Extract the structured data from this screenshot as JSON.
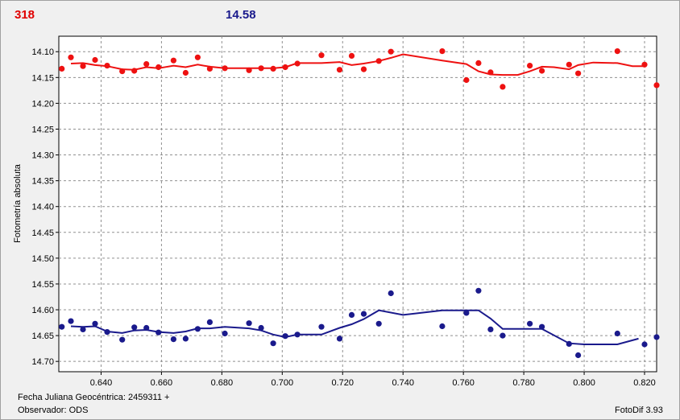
{
  "header": {
    "left": "318",
    "right": "14.58"
  },
  "footer": {
    "date_label": "Fecha Juliana Geocéntrica: 2459311 +",
    "observer": "Observador: ODS",
    "software": "FotoDif 3.93"
  },
  "colors": {
    "red": "#ee1111",
    "blue": "#1a1a8c"
  },
  "chart_data": {
    "type": "scatter",
    "ylabel": "Fotometría absoluta",
    "xlim": [
      0.626,
      0.824
    ],
    "ylim": [
      14.72,
      14.07
    ],
    "y_inverted": true,
    "grid": true,
    "x_ticks": [
      "0.640",
      "0.660",
      "0.680",
      "0.700",
      "0.720",
      "0.740",
      "0.760",
      "0.780",
      "0.800",
      "0.820"
    ],
    "x_tick_values": [
      0.64,
      0.66,
      0.68,
      0.7,
      0.72,
      0.74,
      0.76,
      0.78,
      0.8,
      0.82
    ],
    "y_ticks": [
      "14.10",
      "14.15",
      "14.20",
      "14.25",
      "14.30",
      "14.35",
      "14.40",
      "14.45",
      "14.50",
      "14.55",
      "14.60",
      "14.65",
      "14.70"
    ],
    "y_tick_values": [
      14.1,
      14.15,
      14.2,
      14.25,
      14.3,
      14.35,
      14.4,
      14.45,
      14.5,
      14.55,
      14.6,
      14.65,
      14.7
    ],
    "series": [
      {
        "name": "318",
        "points": [
          [
            0.627,
            14.133
          ],
          [
            0.63,
            14.111
          ],
          [
            0.634,
            14.128
          ],
          [
            0.638,
            14.116
          ],
          [
            0.642,
            14.127
          ],
          [
            0.647,
            14.138
          ],
          [
            0.651,
            14.137
          ],
          [
            0.655,
            14.124
          ],
          [
            0.659,
            14.13
          ],
          [
            0.664,
            14.117
          ],
          [
            0.668,
            14.141
          ],
          [
            0.672,
            14.111
          ],
          [
            0.676,
            14.133
          ],
          [
            0.681,
            14.132
          ],
          [
            0.689,
            14.136
          ],
          [
            0.693,
            14.132
          ],
          [
            0.697,
            14.133
          ],
          [
            0.701,
            14.13
          ],
          [
            0.705,
            14.123
          ],
          [
            0.713,
            14.107
          ],
          [
            0.719,
            14.135
          ],
          [
            0.723,
            14.108
          ],
          [
            0.727,
            14.134
          ],
          [
            0.732,
            14.118
          ],
          [
            0.736,
            14.1
          ],
          [
            0.753,
            14.099
          ],
          [
            0.761,
            14.155
          ],
          [
            0.765,
            14.122
          ],
          [
            0.769,
            14.14
          ],
          [
            0.773,
            14.168
          ],
          [
            0.782,
            14.127
          ],
          [
            0.786,
            14.137
          ],
          [
            0.795,
            14.125
          ],
          [
            0.798,
            14.142
          ],
          [
            0.811,
            14.099
          ],
          [
            0.82,
            14.125
          ],
          [
            0.824,
            14.165
          ]
        ],
        "trend": [
          [
            0.63,
            14.123
          ],
          [
            0.634,
            14.122
          ],
          [
            0.638,
            14.126
          ],
          [
            0.642,
            14.128
          ],
          [
            0.647,
            14.134
          ],
          [
            0.651,
            14.135
          ],
          [
            0.655,
            14.13
          ],
          [
            0.659,
            14.132
          ],
          [
            0.664,
            14.127
          ],
          [
            0.668,
            14.13
          ],
          [
            0.672,
            14.125
          ],
          [
            0.676,
            14.129
          ],
          [
            0.681,
            14.132
          ],
          [
            0.689,
            14.132
          ],
          [
            0.693,
            14.132
          ],
          [
            0.697,
            14.132
          ],
          [
            0.701,
            14.13
          ],
          [
            0.705,
            14.122
          ],
          [
            0.713,
            14.122
          ],
          [
            0.719,
            14.12
          ],
          [
            0.723,
            14.126
          ],
          [
            0.727,
            14.123
          ],
          [
            0.732,
            14.118
          ],
          [
            0.736,
            14.112
          ],
          [
            0.74,
            14.105
          ],
          [
            0.753,
            14.117
          ],
          [
            0.761,
            14.124
          ],
          [
            0.765,
            14.138
          ],
          [
            0.769,
            14.144
          ],
          [
            0.773,
            14.145
          ],
          [
            0.778,
            14.145
          ],
          [
            0.782,
            14.138
          ],
          [
            0.786,
            14.129
          ],
          [
            0.79,
            14.13
          ],
          [
            0.795,
            14.134
          ],
          [
            0.798,
            14.126
          ],
          [
            0.803,
            14.121
          ],
          [
            0.811,
            14.122
          ],
          [
            0.816,
            14.128
          ],
          [
            0.82,
            14.128
          ]
        ]
      },
      {
        "name": "14.58",
        "points": [
          [
            0.627,
            14.633
          ],
          [
            0.63,
            14.622
          ],
          [
            0.634,
            14.638
          ],
          [
            0.638,
            14.627
          ],
          [
            0.642,
            14.643
          ],
          [
            0.647,
            14.658
          ],
          [
            0.651,
            14.634
          ],
          [
            0.655,
            14.635
          ],
          [
            0.659,
            14.644
          ],
          [
            0.664,
            14.657
          ],
          [
            0.668,
            14.656
          ],
          [
            0.672,
            14.637
          ],
          [
            0.676,
            14.624
          ],
          [
            0.681,
            14.646
          ],
          [
            0.689,
            14.626
          ],
          [
            0.693,
            14.635
          ],
          [
            0.697,
            14.665
          ],
          [
            0.701,
            14.651
          ],
          [
            0.705,
            14.648
          ],
          [
            0.713,
            14.633
          ],
          [
            0.719,
            14.656
          ],
          [
            0.723,
            14.61
          ],
          [
            0.727,
            14.608
          ],
          [
            0.732,
            14.627
          ],
          [
            0.736,
            14.568
          ],
          [
            0.753,
            14.632
          ],
          [
            0.761,
            14.606
          ],
          [
            0.765,
            14.563
          ],
          [
            0.769,
            14.638
          ],
          [
            0.773,
            14.65
          ],
          [
            0.782,
            14.627
          ],
          [
            0.786,
            14.633
          ],
          [
            0.795,
            14.666
          ],
          [
            0.798,
            14.688
          ],
          [
            0.811,
            14.646
          ],
          [
            0.82,
            14.667
          ],
          [
            0.824,
            14.653
          ]
        ],
        "trend": [
          [
            0.63,
            14.632
          ],
          [
            0.634,
            14.633
          ],
          [
            0.638,
            14.632
          ],
          [
            0.642,
            14.642
          ],
          [
            0.647,
            14.645
          ],
          [
            0.651,
            14.64
          ],
          [
            0.655,
            14.639
          ],
          [
            0.659,
            14.643
          ],
          [
            0.664,
            14.645
          ],
          [
            0.668,
            14.642
          ],
          [
            0.672,
            14.636
          ],
          [
            0.676,
            14.636
          ],
          [
            0.681,
            14.633
          ],
          [
            0.689,
            14.636
          ],
          [
            0.693,
            14.64
          ],
          [
            0.697,
            14.648
          ],
          [
            0.701,
            14.653
          ],
          [
            0.705,
            14.648
          ],
          [
            0.713,
            14.648
          ],
          [
            0.719,
            14.635
          ],
          [
            0.723,
            14.628
          ],
          [
            0.727,
            14.618
          ],
          [
            0.732,
            14.601
          ],
          [
            0.74,
            14.61
          ],
          [
            0.753,
            14.601
          ],
          [
            0.765,
            14.601
          ],
          [
            0.769,
            14.617
          ],
          [
            0.773,
            14.637
          ],
          [
            0.786,
            14.637
          ],
          [
            0.795,
            14.665
          ],
          [
            0.8,
            14.667
          ],
          [
            0.811,
            14.667
          ],
          [
            0.818,
            14.656
          ]
        ]
      }
    ]
  }
}
